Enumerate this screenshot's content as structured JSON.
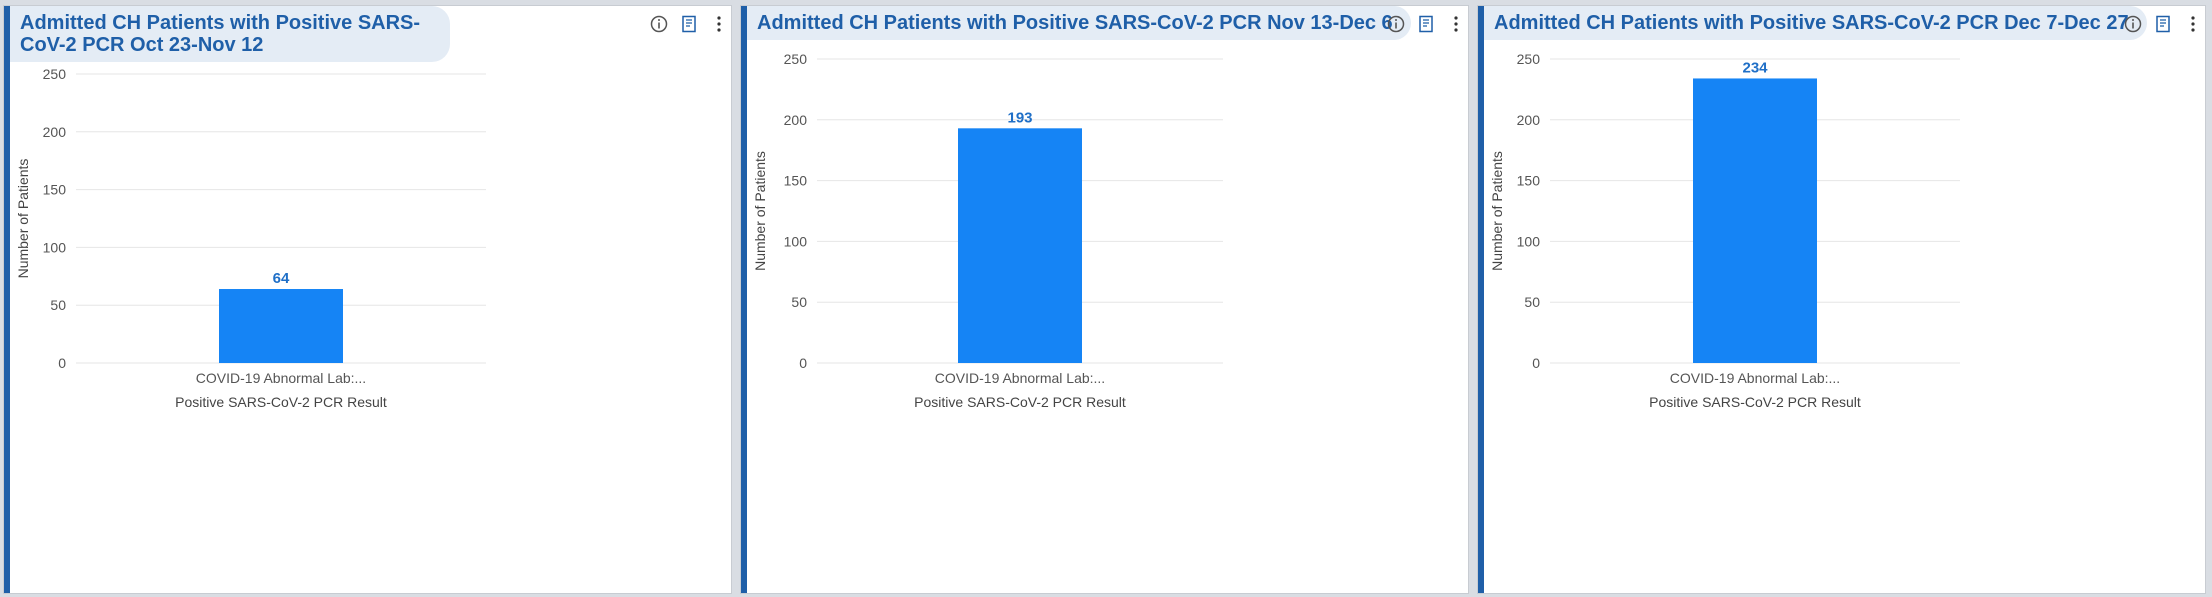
{
  "colors": {
    "bar": "#1584f5",
    "panel_accent": "#1f5fa8",
    "title_text": "#1f5fa8",
    "title_bg": "#e4ecf5",
    "gridline": "#e6e6e6",
    "data_label": "#1f6fc7"
  },
  "panels": [
    {
      "title": "Admitted CH Patients with Positive SARS-CoV-2 PCR Oct 23-Nov 12",
      "icons": [
        "info-icon",
        "bookmark-icon",
        "more-options-icon"
      ]
    },
    {
      "title": "Admitted CH Patients with Positive SARS-CoV-2 PCR Nov 13-Dec 6",
      "icons": [
        "info-icon",
        "bookmark-icon",
        "more-options-icon"
      ]
    },
    {
      "title": "Admitted CH Patients with Positive SARS-CoV-2 PCR Dec 7-Dec 27",
      "icons": [
        "info-icon",
        "bookmark-icon",
        "more-options-icon"
      ]
    }
  ],
  "chart_data": [
    {
      "type": "bar",
      "categories": [
        "COVID-19 Abnormal Lab:..."
      ],
      "values": [
        64
      ],
      "data_labels": [
        "64"
      ],
      "xlabel": "Positive SARS-CoV-2 PCR Result",
      "ylabel": "Number of Patients",
      "ylim": [
        0,
        250
      ],
      "yticks": [
        0,
        50,
        100,
        150,
        200,
        250
      ],
      "grid": true,
      "legend": "none"
    },
    {
      "type": "bar",
      "categories": [
        "COVID-19 Abnormal Lab:..."
      ],
      "values": [
        193
      ],
      "data_labels": [
        "193"
      ],
      "xlabel": "Positive SARS-CoV-2 PCR Result",
      "ylabel": "Number of Patients",
      "ylim": [
        0,
        250
      ],
      "yticks": [
        0,
        50,
        100,
        150,
        200,
        250
      ],
      "grid": true,
      "legend": "none"
    },
    {
      "type": "bar",
      "categories": [
        "COVID-19 Abnormal Lab:..."
      ],
      "values": [
        234
      ],
      "data_labels": [
        "234"
      ],
      "xlabel": "Positive SARS-CoV-2 PCR Result",
      "ylabel": "Number of Patients",
      "ylim": [
        0,
        250
      ],
      "yticks": [
        0,
        50,
        100,
        150,
        200,
        250
      ],
      "grid": true,
      "legend": "none"
    }
  ]
}
